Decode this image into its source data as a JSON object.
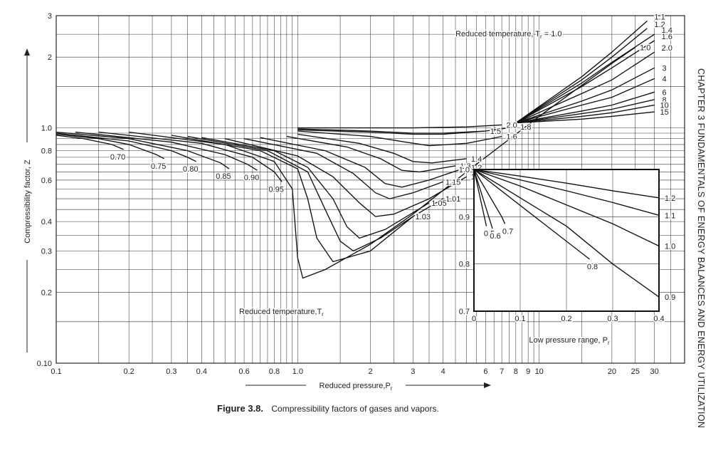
{
  "chart_data": {
    "type": "line",
    "title": "",
    "xlabel": "Reduced pressure,P",
    "xlabel_sub": "r",
    "ylabel": "Compressibility factor, Z",
    "xscale": "log",
    "yscale": "log",
    "xlim": [
      0.1,
      40
    ],
    "ylim": [
      0.1,
      3
    ],
    "x_ticks": [
      "0.1",
      "0.2",
      "0.3",
      "0.4",
      "0.6",
      "0.8",
      "1.0",
      "2",
      "3",
      "4",
      "6",
      "7",
      "8",
      "9",
      "10",
      "20",
      "25",
      "30"
    ],
    "y_ticks": [
      "0.10",
      "0.2",
      "0.3",
      "0.4",
      "0.6",
      "0.8",
      "1.0",
      "2",
      "3"
    ],
    "grid": true,
    "annotations": {
      "high_temp_title": "Reduced temperature, T",
      "high_temp_title_sub": "r",
      "high_temp_title_value": "= 1.0",
      "low_temp_title": "Reduced temperature,T",
      "low_temp_title_sub": "r"
    },
    "series": [
      {
        "name": "0.70",
        "points": [
          [
            0.1,
            0.93
          ],
          [
            0.13,
            0.9
          ],
          [
            0.17,
            0.85
          ],
          [
            0.19,
            0.81
          ]
        ]
      },
      {
        "name": "0.75",
        "points": [
          [
            0.1,
            0.94
          ],
          [
            0.15,
            0.9
          ],
          [
            0.2,
            0.85
          ],
          [
            0.26,
            0.77
          ],
          [
            0.28,
            0.74
          ]
        ]
      },
      {
        "name": "0.80",
        "points": [
          [
            0.1,
            0.95
          ],
          [
            0.2,
            0.88
          ],
          [
            0.3,
            0.8
          ],
          [
            0.35,
            0.75
          ],
          [
            0.38,
            0.72
          ]
        ]
      },
      {
        "name": "0.85",
        "points": [
          [
            0.1,
            0.96
          ],
          [
            0.2,
            0.9
          ],
          [
            0.35,
            0.8
          ],
          [
            0.48,
            0.71
          ],
          [
            0.52,
            0.67
          ]
        ]
      },
      {
        "name": "0.90",
        "points": [
          [
            0.12,
            0.96
          ],
          [
            0.3,
            0.87
          ],
          [
            0.5,
            0.77
          ],
          [
            0.62,
            0.7
          ],
          [
            0.68,
            0.66
          ]
        ]
      },
      {
        "name": "0.95",
        "points": [
          [
            0.15,
            0.96
          ],
          [
            0.4,
            0.86
          ],
          [
            0.65,
            0.75
          ],
          [
            0.8,
            0.65
          ],
          [
            0.86,
            0.59
          ]
        ]
      },
      {
        "name": "1.0",
        "points": [
          [
            0.2,
            0.96
          ],
          [
            0.5,
            0.85
          ],
          [
            0.8,
            0.72
          ],
          [
            0.95,
            0.55
          ],
          [
            1.0,
            0.28
          ],
          [
            1.05,
            0.23
          ],
          [
            1.3,
            0.25
          ],
          [
            2,
            0.32
          ],
          [
            3,
            0.43
          ],
          [
            5,
            0.65
          ],
          [
            10,
            1.12
          ],
          [
            20,
            1.88
          ],
          [
            25,
            2.2
          ]
        ]
      },
      {
        "name": "1.01",
        "points": [
          [
            0.3,
            0.93
          ],
          [
            0.7,
            0.8
          ],
          [
            1.0,
            0.67
          ],
          [
            1.1,
            0.5
          ],
          [
            1.2,
            0.34
          ],
          [
            1.4,
            0.27
          ],
          [
            2,
            0.3
          ],
          [
            3,
            0.42
          ],
          [
            4,
            0.5
          ]
        ]
      },
      {
        "name": "1.03",
        "points": [
          [
            0.35,
            0.92
          ],
          [
            0.75,
            0.8
          ],
          [
            1.1,
            0.65
          ],
          [
            1.3,
            0.45
          ],
          [
            1.5,
            0.33
          ],
          [
            1.7,
            0.3
          ],
          [
            2.2,
            0.34
          ],
          [
            3,
            0.42
          ]
        ]
      },
      {
        "name": "1.05",
        "points": [
          [
            0.4,
            0.91
          ],
          [
            0.8,
            0.8
          ],
          [
            1.1,
            0.68
          ],
          [
            1.4,
            0.5
          ],
          [
            1.6,
            0.38
          ],
          [
            1.8,
            0.34
          ],
          [
            2.3,
            0.37
          ],
          [
            3.5,
            0.48
          ]
        ]
      },
      {
        "name": "1.1",
        "points": [
          [
            0.5,
            0.9
          ],
          [
            1.0,
            0.76
          ],
          [
            1.4,
            0.62
          ],
          [
            1.8,
            0.48
          ],
          [
            2.1,
            0.42
          ],
          [
            2.5,
            0.43
          ],
          [
            3.5,
            0.5
          ],
          [
            5,
            0.62
          ]
        ]
      },
      {
        "name": "1.15",
        "points": [
          [
            0.6,
            0.9
          ],
          [
            1.2,
            0.78
          ],
          [
            1.7,
            0.64
          ],
          [
            2.1,
            0.53
          ],
          [
            2.4,
            0.5
          ],
          [
            3,
            0.53
          ],
          [
            4,
            0.59
          ]
        ]
      },
      {
        "name": "1.2",
        "points": [
          [
            0.7,
            0.91
          ],
          [
            1.3,
            0.8
          ],
          [
            1.9,
            0.68
          ],
          [
            2.3,
            0.58
          ],
          [
            2.7,
            0.56
          ],
          [
            3.5,
            0.6
          ],
          [
            5,
            0.68
          ]
        ]
      },
      {
        "name": "1.3",
        "points": [
          [
            0.9,
            0.92
          ],
          [
            1.6,
            0.83
          ],
          [
            2.2,
            0.74
          ],
          [
            2.7,
            0.66
          ],
          [
            3.2,
            0.65
          ],
          [
            4.5,
            0.69
          ]
        ]
      },
      {
        "name": "1.4",
        "points": [
          [
            1.0,
            0.94
          ],
          [
            1.8,
            0.86
          ],
          [
            2.5,
            0.78
          ],
          [
            3,
            0.72
          ],
          [
            3.6,
            0.71
          ],
          [
            5,
            0.74
          ]
        ]
      },
      {
        "name": "1.5",
        "points": [
          [
            1.0,
            0.98
          ],
          [
            2,
            0.96
          ],
          [
            3,
            0.94
          ],
          [
            4,
            0.94
          ],
          [
            6,
            0.97
          ]
        ]
      },
      {
        "name": "1.6",
        "points": [
          [
            1.0,
            0.97
          ],
          [
            2,
            0.92
          ],
          [
            2.8,
            0.87
          ],
          [
            3.5,
            0.84
          ],
          [
            5,
            0.86
          ],
          [
            7,
            0.92
          ]
        ]
      },
      {
        "name": "1.8",
        "points": [
          [
            1.0,
            0.99
          ],
          [
            2,
            0.97
          ],
          [
            3,
            0.95
          ],
          [
            4,
            0.95
          ],
          [
            6,
            0.97
          ],
          [
            8,
            1.01
          ]
        ]
      },
      {
        "name": "2.0",
        "points": [
          [
            1.0,
            1.0
          ],
          [
            3,
            1.0
          ],
          [
            5,
            1.01
          ],
          [
            7,
            1.03
          ]
        ]
      },
      {
        "name": "1.1 (high)",
        "points": [
          [
            8,
            1.05
          ],
          [
            15,
            1.65
          ],
          [
            20,
            2.1
          ],
          [
            28,
            2.85
          ]
        ]
      },
      {
        "name": "1.2 (high)",
        "points": [
          [
            8,
            1.05
          ],
          [
            15,
            1.6
          ],
          [
            20,
            2.0
          ],
          [
            28,
            2.65
          ]
        ]
      },
      {
        "name": "1.4 (high)",
        "points": [
          [
            8,
            1.05
          ],
          [
            15,
            1.55
          ],
          [
            20,
            1.9
          ],
          [
            30,
            2.5
          ]
        ]
      },
      {
        "name": "1.6 (high)",
        "points": [
          [
            8,
            1.05
          ],
          [
            15,
            1.5
          ],
          [
            20,
            1.8
          ],
          [
            30,
            2.35
          ]
        ]
      },
      {
        "name": "2.0 (high)",
        "points": [
          [
            8,
            1.05
          ],
          [
            15,
            1.4
          ],
          [
            20,
            1.6
          ],
          [
            30,
            2.1
          ]
        ]
      },
      {
        "name": "3",
        "points": [
          [
            8,
            1.05
          ],
          [
            15,
            1.3
          ],
          [
            20,
            1.45
          ],
          [
            30,
            1.8
          ]
        ]
      },
      {
        "name": "4",
        "points": [
          [
            8,
            1.05
          ],
          [
            15,
            1.25
          ],
          [
            20,
            1.35
          ],
          [
            30,
            1.62
          ]
        ]
      },
      {
        "name": "6",
        "points": [
          [
            8,
            1.05
          ],
          [
            15,
            1.18
          ],
          [
            20,
            1.25
          ],
          [
            30,
            1.42
          ]
        ]
      },
      {
        "name": "8",
        "points": [
          [
            8,
            1.05
          ],
          [
            15,
            1.15
          ],
          [
            20,
            1.2
          ],
          [
            30,
            1.32
          ]
        ]
      },
      {
        "name": "10",
        "points": [
          [
            8,
            1.05
          ],
          [
            15,
            1.12
          ],
          [
            20,
            1.16
          ],
          [
            30,
            1.25
          ]
        ]
      },
      {
        "name": "15",
        "points": [
          [
            8,
            1.05
          ],
          [
            15,
            1.09
          ],
          [
            20,
            1.12
          ],
          [
            30,
            1.17
          ]
        ]
      }
    ],
    "inset": {
      "xlabel": "Low pressure range, P",
      "xlabel_sub": "r",
      "xlim": [
        0,
        0.4
      ],
      "ylim": [
        0.7,
        1.0
      ],
      "x_ticks": [
        "0",
        "0.1",
        "0.2",
        "0.3",
        "0.4"
      ],
      "y_ticks": [
        "0.7",
        "0.8",
        "0.9",
        "1.0"
      ],
      "grid": true,
      "series": [
        {
          "name": "0.5",
          "points": [
            [
              0,
              1.0
            ],
            [
              0.027,
              0.88
            ]
          ]
        },
        {
          "name": "0.6",
          "points": [
            [
              0,
              1.0
            ],
            [
              0.04,
              0.875
            ]
          ]
        },
        {
          "name": "0.7",
          "points": [
            [
              0,
              1.0
            ],
            [
              0.06,
              0.9
            ],
            [
              0.067,
              0.885
            ]
          ]
        },
        {
          "name": "0.8",
          "points": [
            [
              0,
              1.0
            ],
            [
              0.25,
              0.81
            ]
          ]
        },
        {
          "name": "0.9",
          "points": [
            [
              0,
              1.0
            ],
            [
              0.1,
              0.94
            ],
            [
              0.2,
              0.88
            ],
            [
              0.3,
              0.8
            ],
            [
              0.4,
              0.73
            ]
          ]
        },
        {
          "name": "1.0",
          "points": [
            [
              0,
              1.0
            ],
            [
              0.1,
              0.965
            ],
            [
              0.2,
              0.925
            ],
            [
              0.3,
              0.885
            ],
            [
              0.4,
              0.838
            ]
          ]
        },
        {
          "name": "1.1",
          "points": [
            [
              0,
              1.0
            ],
            [
              0.1,
              0.978
            ],
            [
              0.2,
              0.955
            ],
            [
              0.3,
              0.93
            ],
            [
              0.4,
              0.903
            ]
          ]
        },
        {
          "name": "1.2",
          "points": [
            [
              0,
              1.0
            ],
            [
              0.1,
              0.986
            ],
            [
              0.2,
              0.971
            ],
            [
              0.3,
              0.955
            ],
            [
              0.4,
              0.94
            ]
          ]
        }
      ]
    }
  },
  "figure": {
    "label": "Figure 3.8.",
    "caption": "Compressibility factors of gases and vapors."
  },
  "sidebar": {
    "text": "CHAPTER 3   FUNDAMENTALS OF ENERGY BALANCES AND ENERGY UTILIZATION"
  }
}
